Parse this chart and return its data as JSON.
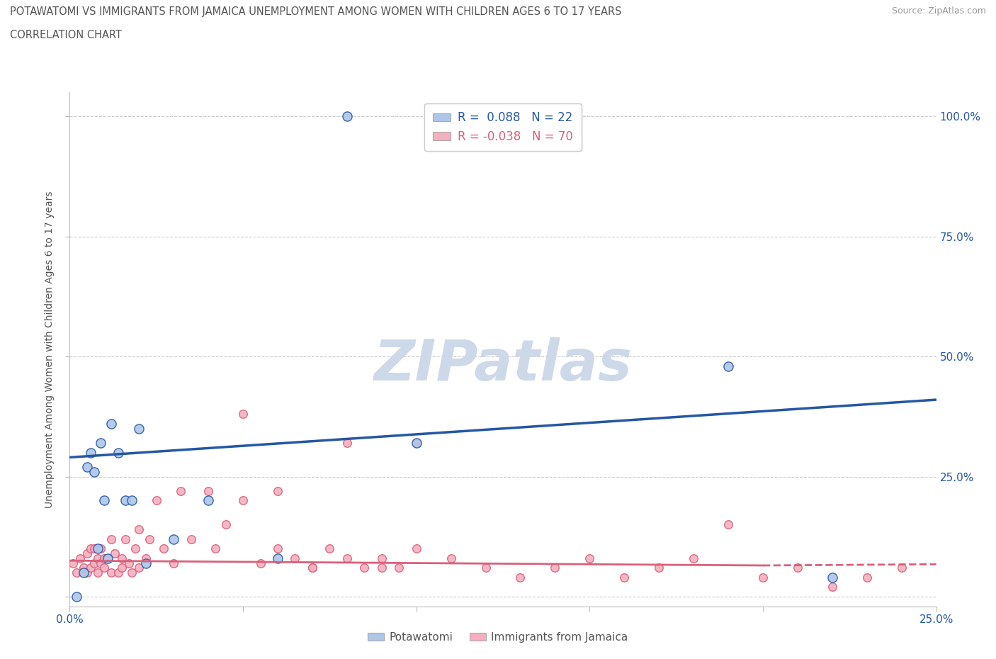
{
  "title_line1": "POTAWATOMI VS IMMIGRANTS FROM JAMAICA UNEMPLOYMENT AMONG WOMEN WITH CHILDREN AGES 6 TO 17 YEARS",
  "title_line2": "CORRELATION CHART",
  "source_text": "Source: ZipAtlas.com",
  "ylabel": "Unemployment Among Women with Children Ages 6 to 17 years",
  "xlim": [
    0.0,
    0.25
  ],
  "ylim": [
    -0.02,
    1.05
  ],
  "blue_R": 0.088,
  "blue_N": 22,
  "pink_R": -0.038,
  "pink_N": 70,
  "blue_color": "#aec6e8",
  "pink_color": "#f4afc0",
  "blue_line_color": "#2457a4",
  "pink_line_color": "#d9607a",
  "watermark": "ZIPatlas",
  "watermark_color": "#cdd9e8",
  "legend_label_blue": "Potawatomi",
  "legend_label_pink": "Immigrants from Jamaica",
  "blue_scatter_x": [
    0.002,
    0.004,
    0.005,
    0.006,
    0.007,
    0.008,
    0.009,
    0.01,
    0.011,
    0.012,
    0.014,
    0.016,
    0.018,
    0.02,
    0.022,
    0.03,
    0.04,
    0.06,
    0.08,
    0.1,
    0.19,
    0.22
  ],
  "blue_scatter_y": [
    0.0,
    0.05,
    0.27,
    0.3,
    0.26,
    0.1,
    0.32,
    0.2,
    0.08,
    0.36,
    0.3,
    0.2,
    0.2,
    0.35,
    0.07,
    0.12,
    0.2,
    0.08,
    1.0,
    0.32,
    0.48,
    0.04
  ],
  "pink_scatter_x": [
    0.001,
    0.002,
    0.003,
    0.004,
    0.005,
    0.005,
    0.006,
    0.006,
    0.007,
    0.007,
    0.008,
    0.008,
    0.009,
    0.009,
    0.01,
    0.01,
    0.011,
    0.012,
    0.012,
    0.013,
    0.014,
    0.015,
    0.015,
    0.016,
    0.017,
    0.018,
    0.019,
    0.02,
    0.02,
    0.022,
    0.023,
    0.025,
    0.027,
    0.03,
    0.032,
    0.035,
    0.04,
    0.042,
    0.045,
    0.05,
    0.055,
    0.06,
    0.065,
    0.07,
    0.075,
    0.08,
    0.085,
    0.09,
    0.095,
    0.1,
    0.11,
    0.12,
    0.13,
    0.14,
    0.15,
    0.16,
    0.17,
    0.18,
    0.19,
    0.2,
    0.21,
    0.22,
    0.23,
    0.24,
    0.05,
    0.06,
    0.07,
    0.08,
    0.09,
    0.1
  ],
  "pink_scatter_y": [
    0.07,
    0.05,
    0.08,
    0.06,
    0.09,
    0.05,
    0.1,
    0.06,
    0.1,
    0.07,
    0.08,
    0.05,
    0.1,
    0.07,
    0.08,
    0.06,
    0.08,
    0.12,
    0.05,
    0.09,
    0.05,
    0.08,
    0.06,
    0.12,
    0.07,
    0.05,
    0.1,
    0.14,
    0.06,
    0.08,
    0.12,
    0.2,
    0.1,
    0.07,
    0.22,
    0.12,
    0.22,
    0.1,
    0.15,
    0.2,
    0.07,
    0.22,
    0.08,
    0.06,
    0.1,
    0.32,
    0.06,
    0.08,
    0.06,
    0.1,
    0.08,
    0.06,
    0.04,
    0.06,
    0.08,
    0.04,
    0.06,
    0.08,
    0.15,
    0.04,
    0.06,
    0.02,
    0.04,
    0.06,
    0.38,
    0.1,
    0.06,
    0.08,
    0.06,
    0.32
  ],
  "blue_trendline_x": [
    0.0,
    0.25
  ],
  "blue_trendline_y": [
    0.29,
    0.41
  ],
  "pink_trendline_x": [
    0.0,
    0.2
  ],
  "pink_trendline_y": [
    0.075,
    0.065
  ]
}
